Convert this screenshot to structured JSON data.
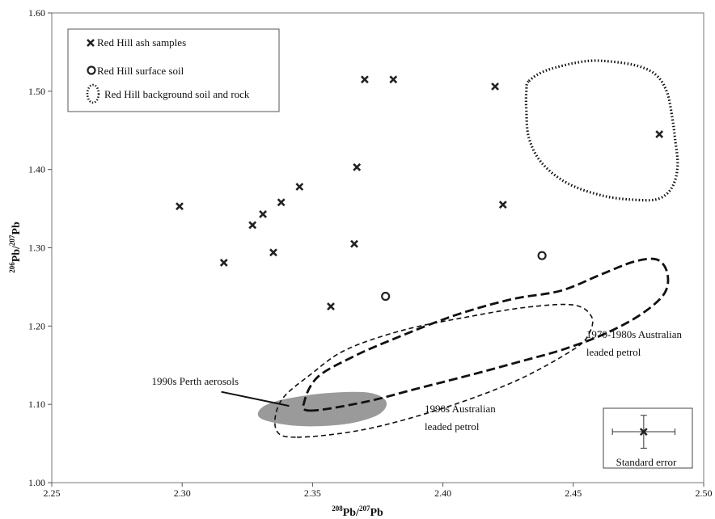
{
  "chart_data": {
    "type": "scatter",
    "xlabel": {
      "sup1": "208",
      "base1": "Pb/",
      "sup2": "207",
      "base2": "Pb"
    },
    "ylabel": {
      "sup1": "206",
      "base1": "Pb/",
      "sup2": "207",
      "base2": "Pb"
    },
    "xlim": [
      2.25,
      2.5
    ],
    "ylim": [
      1.0,
      1.6
    ],
    "x_ticks": [
      "2.25",
      "2.30",
      "2.35",
      "2.40",
      "2.45",
      "2.50"
    ],
    "y_ticks": [
      "1.00",
      "1.10",
      "1.20",
      "1.30",
      "1.40",
      "1.50",
      "1.60"
    ],
    "grid": false,
    "legend_position": "top-left",
    "legend": [
      {
        "label": "Red Hill ash samples",
        "marker": "x"
      },
      {
        "label": "Red Hill surface soil",
        "marker": "circle"
      },
      {
        "label": "Red Hill background soil and rock",
        "marker": "dotted-ellipse"
      }
    ],
    "series": [
      {
        "name": "Red Hill ash samples",
        "marker": "x",
        "points": [
          [
            2.299,
            1.353
          ],
          [
            2.316,
            1.281
          ],
          [
            2.327,
            1.329
          ],
          [
            2.331,
            1.343
          ],
          [
            2.335,
            1.294
          ],
          [
            2.338,
            1.358
          ],
          [
            2.345,
            1.378
          ],
          [
            2.357,
            1.225
          ],
          [
            2.366,
            1.305
          ],
          [
            2.367,
            1.403
          ],
          [
            2.37,
            1.515
          ],
          [
            2.381,
            1.515
          ],
          [
            2.42,
            1.506
          ],
          [
            2.423,
            1.355
          ],
          [
            2.483,
            1.445
          ]
        ]
      },
      {
        "name": "Red Hill surface soil",
        "marker": "circle",
        "points": [
          [
            2.378,
            1.238
          ],
          [
            2.438,
            1.29
          ]
        ]
      }
    ],
    "regions": [
      {
        "name": "Red Hill background soil and rock",
        "style": "dotted",
        "outline": [
          [
            2.433,
            1.513
          ],
          [
            2.44,
            1.527
          ],
          [
            2.454,
            1.538
          ],
          [
            2.464,
            1.538
          ],
          [
            2.475,
            1.532
          ],
          [
            2.482,
            1.52
          ],
          [
            2.486,
            1.498
          ],
          [
            2.488,
            1.465
          ],
          [
            2.489,
            1.44
          ],
          [
            2.49,
            1.405
          ],
          [
            2.488,
            1.378
          ],
          [
            2.483,
            1.363
          ],
          [
            2.475,
            1.361
          ],
          [
            2.462,
            1.366
          ],
          [
            2.448,
            1.382
          ],
          [
            2.438,
            1.408
          ],
          [
            2.433,
            1.44
          ],
          [
            2.432,
            1.475
          ],
          [
            2.432,
            1.5
          ]
        ]
      },
      {
        "name": "1970-1980s Australian leaded petrol",
        "style": "dashed",
        "outline": [
          [
            2.349,
            1.092
          ],
          [
            2.37,
            1.103
          ],
          [
            2.39,
            1.12
          ],
          [
            2.41,
            1.137
          ],
          [
            2.43,
            1.155
          ],
          [
            2.446,
            1.17
          ],
          [
            2.462,
            1.19
          ],
          [
            2.476,
            1.215
          ],
          [
            2.485,
            1.242
          ],
          [
            2.486,
            1.268
          ],
          [
            2.482,
            1.285
          ],
          [
            2.473,
            1.282
          ],
          [
            2.46,
            1.265
          ],
          [
            2.445,
            1.245
          ],
          [
            2.426,
            1.234
          ],
          [
            2.404,
            1.213
          ],
          [
            2.38,
            1.182
          ],
          [
            2.365,
            1.16
          ],
          [
            2.352,
            1.135
          ],
          [
            2.347,
            1.105
          ]
        ]
      },
      {
        "name": "1990s Australian leaded petrol",
        "style": "dashed-thin",
        "outline": [
          [
            2.344,
            1.058
          ],
          [
            2.37,
            1.068
          ],
          [
            2.4,
            1.095
          ],
          [
            2.428,
            1.13
          ],
          [
            2.45,
            1.17
          ],
          [
            2.456,
            1.19
          ],
          [
            2.457,
            1.212
          ],
          [
            2.45,
            1.227
          ],
          [
            2.432,
            1.224
          ],
          [
            2.41,
            1.212
          ],
          [
            2.385,
            1.195
          ],
          [
            2.363,
            1.17
          ],
          [
            2.35,
            1.14
          ],
          [
            2.338,
            1.105
          ],
          [
            2.336,
            1.068
          ]
        ]
      },
      {
        "name": "1990s Perth aerosols",
        "style": "filled",
        "outline": [
          [
            2.33,
            1.083
          ],
          [
            2.333,
            1.1
          ],
          [
            2.35,
            1.112
          ],
          [
            2.37,
            1.115
          ],
          [
            2.378,
            1.104
          ],
          [
            2.375,
            1.087
          ],
          [
            2.362,
            1.075
          ],
          [
            2.344,
            1.073
          ]
        ]
      }
    ],
    "annotations": [
      {
        "id": "perth",
        "text": "1990s Perth aerosols",
        "x": 2.305,
        "y": 1.125
      },
      {
        "id": "aus1970_l1",
        "text": "1970-1980s Australian",
        "x": 2.455,
        "y": 1.185
      },
      {
        "id": "aus1970_l2",
        "text": "leaded petrol",
        "x": 2.455,
        "y": 1.162
      },
      {
        "id": "aus1990_l1",
        "text": "1990s Australian",
        "x": 2.393,
        "y": 1.09
      },
      {
        "id": "aus1990_l2",
        "text": "leaded petrol",
        "x": 2.393,
        "y": 1.067
      }
    ],
    "error_inset": {
      "label": "Standard error",
      "center": [
        2.477,
        1.065
      ],
      "x_err": 0.012,
      "y_err": 0.021
    }
  }
}
